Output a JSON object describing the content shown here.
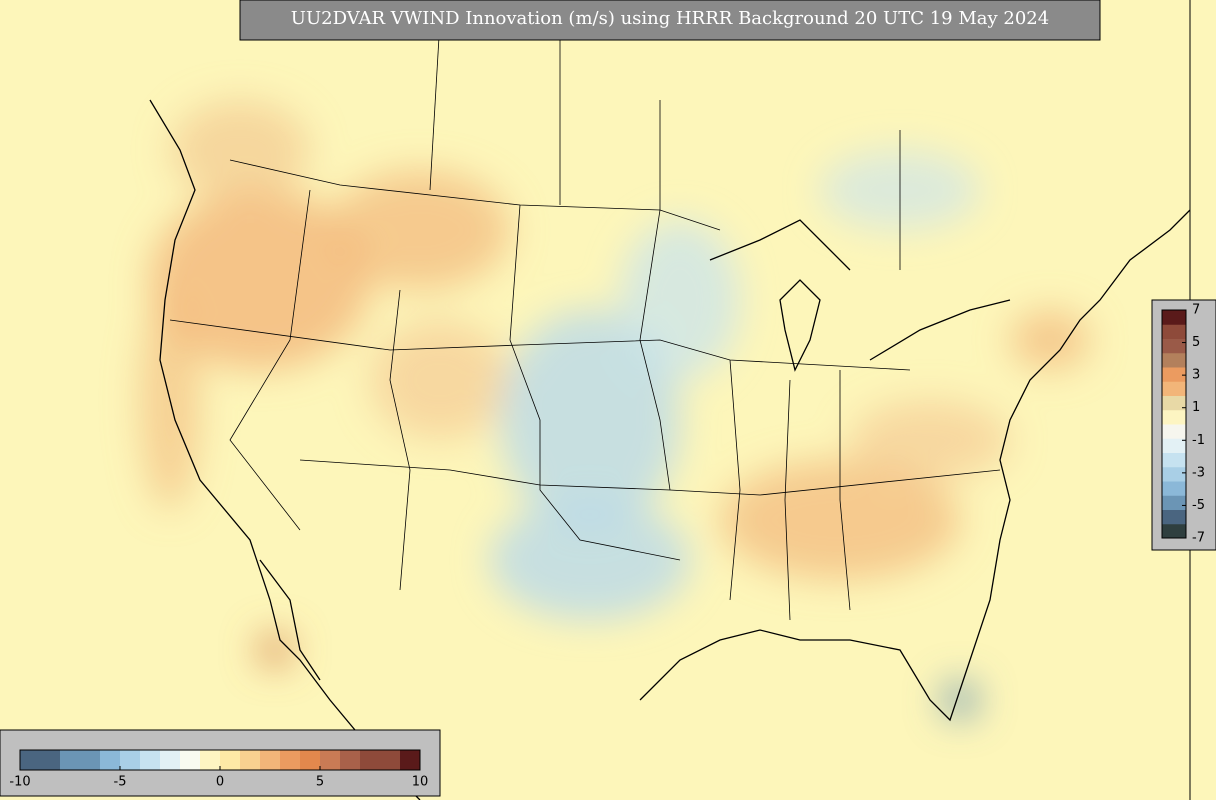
{
  "title": "UU2DVAR VWIND Innovation (m/s) using HRRR Background 20 UTC 19 May 2024",
  "colorbars": [
    {
      "orientation": "horizontal",
      "lim": [
        -10,
        10
      ],
      "ticks": [
        -10,
        -5,
        0,
        5,
        10
      ],
      "colors": [
        "#4a6580",
        "#4a6580",
        "#6b95b5",
        "#6b95b5",
        "#8bb8d8",
        "#a9cfe6",
        "#c6e2f0",
        "#e3f1f5",
        "#f8fbf0",
        "#fdf5c2",
        "#fde9a6",
        "#f8d190",
        "#f2b579",
        "#eb9b60",
        "#e3884d",
        "#c97b55",
        "#a9614a",
        "#8e4a3a",
        "#8e4a3a",
        "#5a1a1a"
      ]
    },
    {
      "orientation": "vertical",
      "lim": [
        -7,
        7
      ],
      "ticks": [
        7,
        5,
        3,
        1,
        -1,
        -3,
        -5,
        -7
      ],
      "colors": [
        "#2f3f3f",
        "#4a6580",
        "#6b95b5",
        "#8bb8d8",
        "#a9cfe6",
        "#c6e2f0",
        "#e3f1f5",
        "#f6f6ee",
        "#fdf5c2",
        "#e8d9a6",
        "#f2b579",
        "#eb9b60",
        "#b3805c",
        "#9a5a48",
        "#8e4a3a",
        "#5a1a1a"
      ]
    }
  ]
}
